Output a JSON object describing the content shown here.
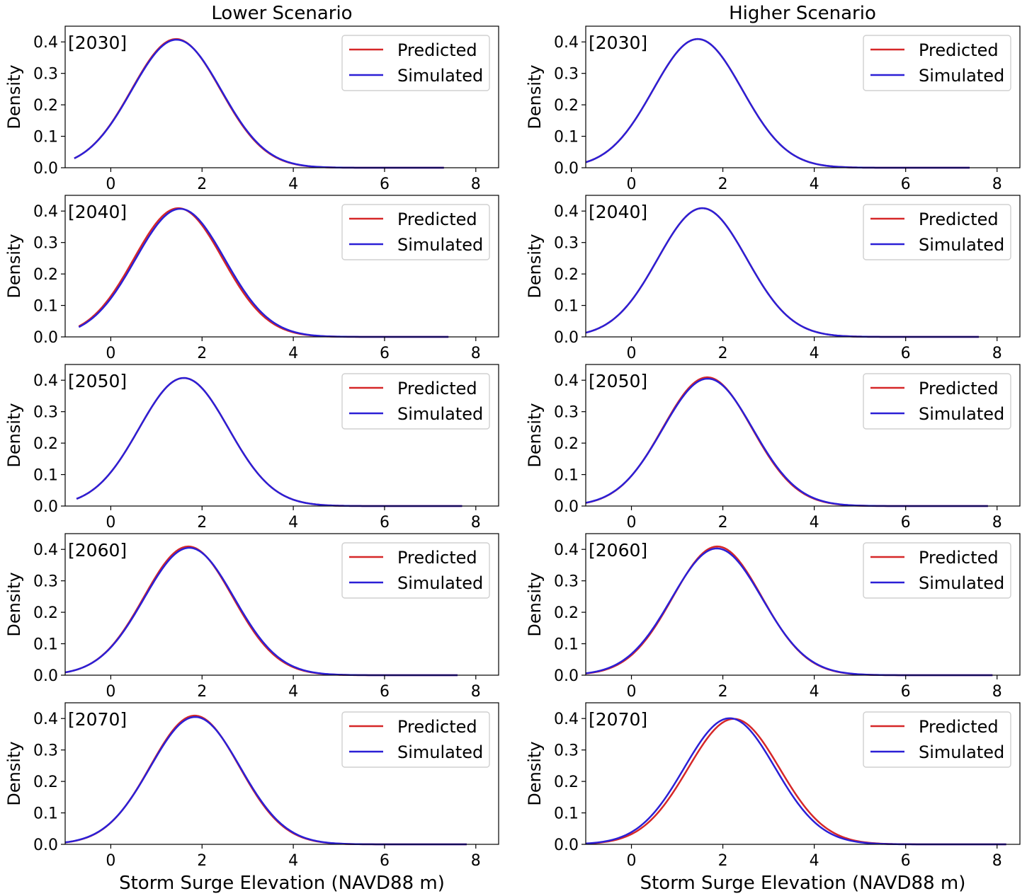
{
  "chart_data": {
    "type": "line",
    "columns": [
      {
        "title": "Lower Scenario",
        "panels": [
          {
            "label": "[2030]",
            "series": [
              {
                "name": "Predicted",
                "color": "#d62728",
                "mean": 1.43,
                "sd": 0.975,
                "x_range": [
                  -0.8,
                  7.3
                ]
              },
              {
                "name": "Simulated",
                "color": "#2b1fd6",
                "mean": 1.44,
                "sd": 0.98,
                "x_range": [
                  -0.8,
                  7.3
                ]
              }
            ]
          },
          {
            "label": "[2040]",
            "series": [
              {
                "name": "Predicted",
                "color": "#d62728",
                "mean": 1.48,
                "sd": 0.975,
                "x_range": [
                  -0.7,
                  7.4
                ]
              },
              {
                "name": "Simulated",
                "color": "#2b1fd6",
                "mean": 1.52,
                "sd": 0.98,
                "x_range": [
                  -0.7,
                  7.4
                ]
              }
            ]
          },
          {
            "label": "[2050]",
            "series": [
              {
                "name": "Predicted",
                "color": "#d62728",
                "mean": 1.6,
                "sd": 0.98,
                "x_range": [
                  -0.75,
                  7.7
                ]
              },
              {
                "name": "Simulated",
                "color": "#2b1fd6",
                "mean": 1.6,
                "sd": 0.98,
                "x_range": [
                  -0.75,
                  7.7
                ]
              }
            ]
          },
          {
            "label": "[2060]",
            "series": [
              {
                "name": "Predicted",
                "color": "#d62728",
                "mean": 1.7,
                "sd": 0.975,
                "x_range": [
                  -1.0,
                  7.6
                ]
              },
              {
                "name": "Simulated",
                "color": "#2b1fd6",
                "mean": 1.72,
                "sd": 0.985,
                "x_range": [
                  -1.0,
                  7.6
                ]
              }
            ]
          },
          {
            "label": "[2070]",
            "series": [
              {
                "name": "Predicted",
                "color": "#d62728",
                "mean": 1.84,
                "sd": 0.975,
                "x_range": [
                  -1.0,
                  7.8
                ]
              },
              {
                "name": "Simulated",
                "color": "#2b1fd6",
                "mean": 1.85,
                "sd": 0.985,
                "x_range": [
                  -1.0,
                  7.8
                ]
              }
            ]
          }
        ]
      },
      {
        "title": "Higher Scenario",
        "panels": [
          {
            "label": "[2030]",
            "series": [
              {
                "name": "Predicted",
                "color": "#d62728",
                "mean": 1.45,
                "sd": 0.975,
                "x_range": [
                  -1.0,
                  7.4
                ]
              },
              {
                "name": "Simulated",
                "color": "#2b1fd6",
                "mean": 1.45,
                "sd": 0.975,
                "x_range": [
                  -1.0,
                  7.4
                ]
              }
            ]
          },
          {
            "label": "[2040]",
            "series": [
              {
                "name": "Predicted",
                "color": "#d62728",
                "mean": 1.55,
                "sd": 0.975,
                "x_range": [
                  -1.0,
                  7.6
                ]
              },
              {
                "name": "Simulated",
                "color": "#2b1fd6",
                "mean": 1.55,
                "sd": 0.975,
                "x_range": [
                  -1.0,
                  7.6
                ]
              }
            ]
          },
          {
            "label": "[2050]",
            "series": [
              {
                "name": "Predicted",
                "color": "#d62728",
                "mean": 1.66,
                "sd": 0.975,
                "x_range": [
                  -1.0,
                  7.8
                ]
              },
              {
                "name": "Simulated",
                "color": "#2b1fd6",
                "mean": 1.67,
                "sd": 0.985,
                "x_range": [
                  -1.0,
                  7.8
                ]
              }
            ]
          },
          {
            "label": "[2060]",
            "series": [
              {
                "name": "Predicted",
                "color": "#d62728",
                "mean": 1.88,
                "sd": 0.975,
                "x_range": [
                  -1.0,
                  7.9
                ]
              },
              {
                "name": "Simulated",
                "color": "#2b1fd6",
                "mean": 1.87,
                "sd": 0.99,
                "x_range": [
                  -1.0,
                  7.9
                ]
              }
            ]
          },
          {
            "label": "[2070]",
            "series": [
              {
                "name": "Predicted",
                "color": "#d62728",
                "mean": 2.24,
                "sd": 1.0,
                "x_range": [
                  -1.0,
                  8.2
                ]
              },
              {
                "name": "Simulated",
                "color": "#2b1fd6",
                "mean": 2.15,
                "sd": 0.995,
                "x_range": [
                  -1.0,
                  8.2
                ]
              }
            ]
          }
        ]
      }
    ],
    "ylabel": "Density",
    "xlabel": "Storm Surge Elevation (NAVD88 m)",
    "xlim": [
      -1.0,
      8.5
    ],
    "ylim": [
      0,
      0.45
    ],
    "xticks": [
      0,
      2,
      4,
      6,
      8
    ],
    "yticks": [
      "0.0",
      "0.1",
      "0.2",
      "0.3",
      "0.4"
    ],
    "legend": {
      "position": "upper-right",
      "entries": [
        "Predicted",
        "Simulated"
      ]
    },
    "grid": false
  }
}
